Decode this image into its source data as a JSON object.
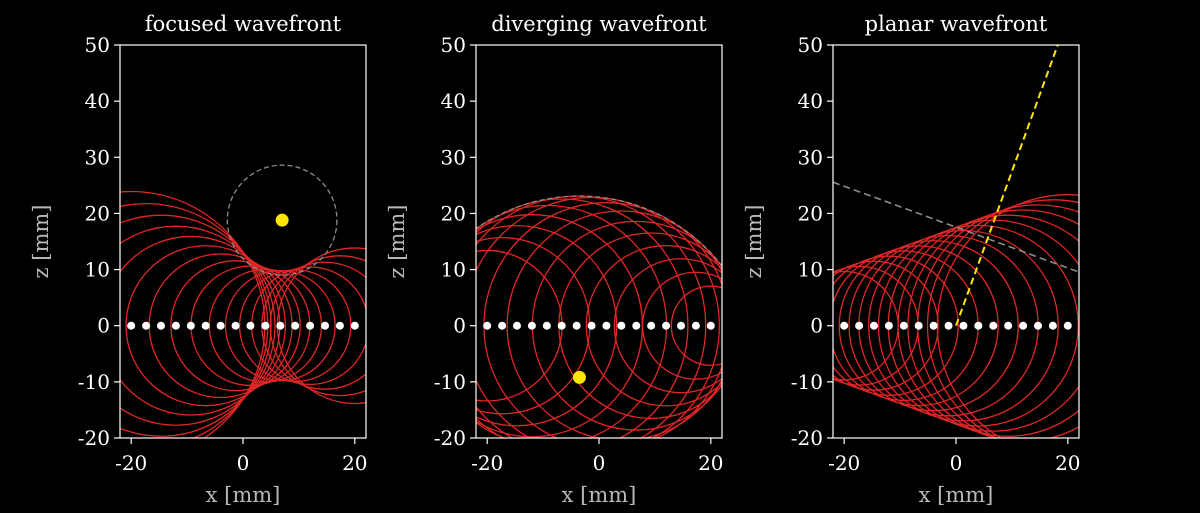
{
  "chart_data": [
    {
      "type": "scatter",
      "title": "focused wavefront",
      "xlabel": "x [mm]",
      "ylabel": "z [mm]",
      "xlim": [
        -22,
        22
      ],
      "ylim": [
        -20,
        50
      ],
      "xticks": [
        -20,
        0,
        20
      ],
      "yticks": [
        -20,
        -10,
        0,
        10,
        20,
        30,
        40,
        50
      ],
      "mode": "focused",
      "elements_x": [
        -20,
        -17.33,
        -14.67,
        -12,
        -9.33,
        -6.67,
        -4,
        -1.33,
        1.33,
        4,
        6.67,
        9.33,
        12,
        14.67,
        17.33,
        20
      ],
      "focus": [
        7,
        18.8
      ],
      "focus_circle_radius": 9.8
    },
    {
      "type": "scatter",
      "title": "diverging wavefront",
      "xlabel": "x [mm]",
      "ylabel": "z [mm]",
      "xlim": [
        -22,
        22
      ],
      "ylim": [
        -20,
        50
      ],
      "xticks": [
        -20,
        0,
        20
      ],
      "yticks": [
        -20,
        -10,
        0,
        10,
        20,
        30,
        40,
        50
      ],
      "mode": "diverging",
      "elements_x": [
        -20,
        -17.33,
        -14.67,
        -12,
        -9.33,
        -6.67,
        -4,
        -1.33,
        1.33,
        4,
        6.67,
        9.33,
        12,
        14.67,
        17.33,
        20
      ],
      "virtual_source": [
        -3.5,
        -9.2
      ],
      "envelope_radius": 32.3
    },
    {
      "type": "scatter",
      "title": "planar wavefront",
      "xlabel": "x [mm]",
      "ylabel": "z [mm]",
      "xlim": [
        -22,
        22
      ],
      "ylim": [
        -20,
        50
      ],
      "xticks": [
        -20,
        0,
        20
      ],
      "yticks": [
        -20,
        -10,
        0,
        10,
        20,
        30,
        40,
        50
      ],
      "mode": "planar",
      "elements_x": [
        -20,
        -17.33,
        -14.67,
        -12,
        -9.33,
        -6.67,
        -4,
        -1.33,
        1.33,
        4,
        6.67,
        9.33,
        12,
        14.67,
        17.33,
        20
      ],
      "steering_angle_deg": 20,
      "beam_line": [
        [
          0,
          0
        ],
        [
          18.2,
          50
        ]
      ]
    }
  ],
  "colors": {
    "background": "#000000",
    "wave_circles": "#e02626",
    "elements": "#ffffff",
    "source_marker": "#ffe600",
    "envelope": "#8c8c8c",
    "beam": "#ffe600",
    "axes": "#ffffff",
    "axis_label": "#b8b8b8"
  }
}
